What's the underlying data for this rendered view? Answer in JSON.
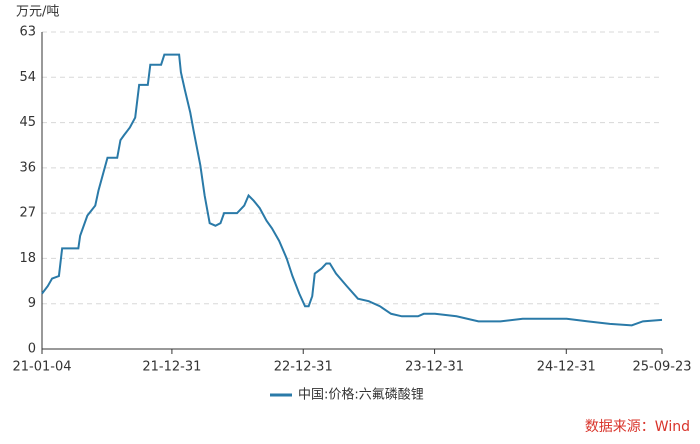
{
  "chart_data": {
    "type": "line",
    "y_unit": "万元/吨",
    "source": "数据来源：Wind",
    "x": [
      "21-01-04",
      "21-01-20",
      "21-02-01",
      "21-02-20",
      "21-03-01",
      "21-04-15",
      "21-04-20",
      "21-05-10",
      "21-06-01",
      "21-06-10",
      "21-07-05",
      "21-08-01",
      "21-08-10",
      "21-08-20",
      "21-09-05",
      "21-09-20",
      "21-10-01",
      "21-10-25",
      "21-11-01",
      "21-12-01",
      "21-12-10",
      "22-01-20",
      "22-01-25",
      "22-02-05",
      "22-02-20",
      "22-03-01",
      "22-03-20",
      "22-04-01",
      "22-04-15",
      "22-05-01",
      "22-05-15",
      "22-05-25",
      "22-06-30",
      "22-07-20",
      "22-08-01",
      "22-08-15",
      "22-09-01",
      "22-09-20",
      "22-10-05",
      "22-10-25",
      "22-11-15",
      "22-12-01",
      "22-12-20",
      "23-01-05",
      "23-01-15",
      "23-01-25",
      "23-02-01",
      "23-02-20",
      "23-03-05",
      "23-03-15",
      "23-04-01",
      "23-05-01",
      "23-06-01",
      "23-07-01",
      "23-08-01",
      "23-09-01",
      "23-10-01",
      "23-11-15",
      "23-12-01",
      "24-01-01",
      "24-03-01",
      "24-05-01",
      "24-07-01",
      "24-09-01",
      "24-11-01",
      "25-01-01",
      "25-03-01",
      "25-05-01",
      "25-07-01",
      "25-08-01",
      "25-09-23"
    ],
    "series": [
      {
        "name": "中国:价格:六氟磷酸锂",
        "color": "#2a7aa8",
        "values": [
          11,
          12.5,
          14,
          14.5,
          20,
          20,
          22.5,
          26.5,
          28.5,
          31.5,
          38,
          38,
          41.5,
          42.5,
          44,
          46,
          52.5,
          52.5,
          56.5,
          56.5,
          58.5,
          58.5,
          55,
          51.5,
          47,
          43.5,
          36.5,
          30.5,
          25,
          24.5,
          25,
          27,
          27,
          28.5,
          30.5,
          29.5,
          28,
          25.5,
          24,
          21.5,
          18,
          14.5,
          11,
          8.5,
          8.5,
          10.5,
          15,
          16,
          17,
          17,
          15,
          12.5,
          10,
          9.5,
          8.5,
          7,
          6.5,
          6.5,
          7,
          7,
          6.5,
          5.5,
          5.5,
          6,
          6,
          6,
          5.5,
          5,
          4.7,
          5.5,
          5.8
        ]
      }
    ],
    "xlim": [
      "21-01-04",
      "25-09-23"
    ],
    "xticks": [
      "21-01-04",
      "21-12-31",
      "22-12-31",
      "23-12-31",
      "24-12-31",
      "25-09-23"
    ],
    "ylim": [
      0,
      63
    ],
    "yticks": [
      0,
      9,
      18,
      27,
      36,
      45,
      54,
      63
    ],
    "grid": true
  }
}
